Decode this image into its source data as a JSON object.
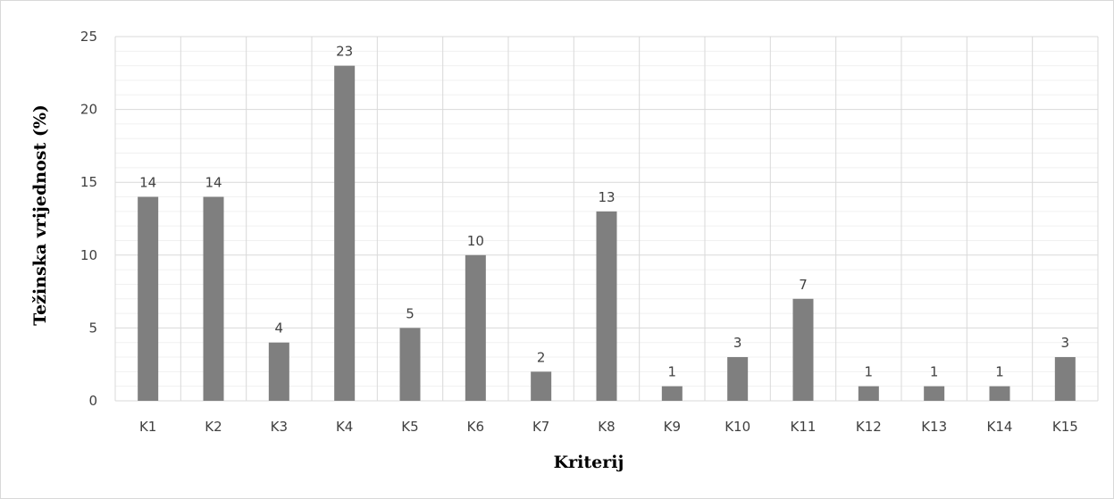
{
  "chart_data": {
    "type": "bar",
    "title": "",
    "xlabel": "Kriterij",
    "ylabel": "Težinska vrijednost (%)",
    "categories": [
      "K1",
      "K2",
      "K3",
      "K4",
      "K5",
      "K6",
      "K7",
      "K8",
      "K9",
      "K10",
      "K11",
      "K12",
      "K13",
      "K14",
      "K15"
    ],
    "values": [
      14,
      14,
      4,
      23,
      5,
      10,
      2,
      13,
      1,
      3,
      7,
      1,
      1,
      1,
      3
    ],
    "ylim": [
      0,
      25
    ],
    "yticks": [
      "0",
      "5",
      "10",
      "15",
      "20",
      "25"
    ],
    "data_labels": [
      "14",
      "14",
      "4",
      "23",
      "5",
      "10",
      "2",
      "13",
      "1",
      "3",
      "7",
      "1",
      "1",
      "1",
      "3"
    ],
    "grid": true,
    "legend": "none",
    "colors": {
      "bar": "#7f7f7f",
      "major_grid": "#d9d9d9",
      "minor_grid": "#f0f0f0",
      "text": "#404040"
    }
  }
}
